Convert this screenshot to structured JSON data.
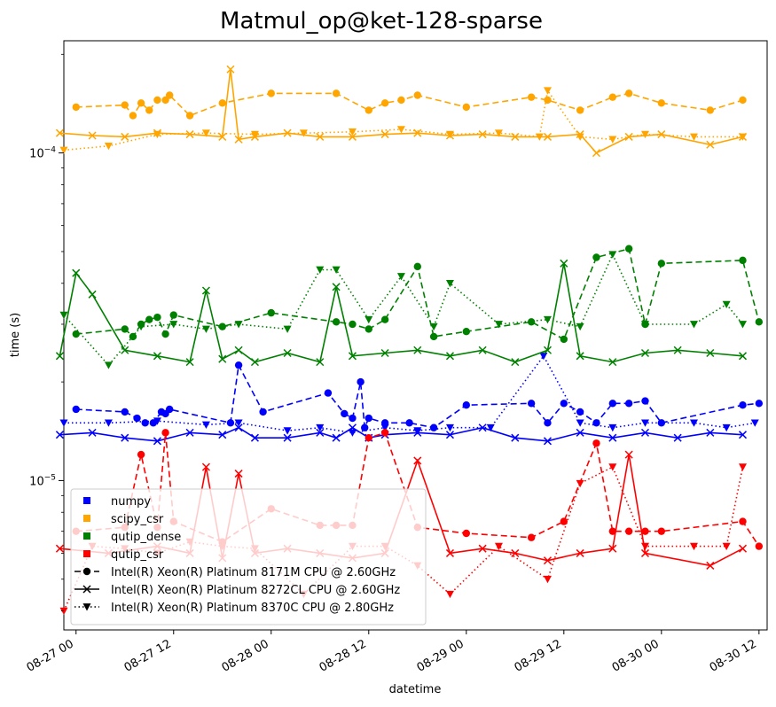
{
  "chart_data": {
    "type": "line",
    "title": "Matmul_op@ket-128-sparse",
    "xlabel": "datetime",
    "ylabel": "time (s)",
    "y_scale": "log",
    "ylim": [
      3.5e-06,
      0.00022
    ],
    "xlim": [
      "08-26 22:30",
      "08-30 13:00"
    ],
    "grid": false,
    "legend_placement": "lower-left",
    "x_ticks": [
      {
        "t": "08-27 00:00",
        "label": "08-27 00"
      },
      {
        "t": "08-27 12:00",
        "label": "08-27 12"
      },
      {
        "t": "08-28 00:00",
        "label": "08-28 00"
      },
      {
        "t": "08-28 12:00",
        "label": "08-28 12"
      },
      {
        "t": "08-29 00:00",
        "label": "08-29 00"
      },
      {
        "t": "08-29 12:00",
        "label": "08-29 12"
      },
      {
        "t": "08-30 00:00",
        "label": "08-30 00"
      },
      {
        "t": "08-30 12:00",
        "label": "08-30 12"
      }
    ],
    "y_ticks": [
      {
        "v": 0.0001,
        "label": "10^-4"
      },
      {
        "v": 1e-05,
        "label": "10^-5"
      }
    ],
    "legend": {
      "colors": [
        {
          "name": "numpy",
          "color": "#0000ff"
        },
        {
          "name": "scipy_csr",
          "color": "#ffa500"
        },
        {
          "name": "qutip_dense",
          "color": "#008000"
        },
        {
          "name": "qutip_csr",
          "color": "#ff0000"
        }
      ],
      "cpus": [
        {
          "name": "Intel(R) Xeon(R) Platinum 8171M CPU @ 2.60GHz",
          "marker": "circle",
          "dash": "dashed"
        },
        {
          "name": "Intel(R) Xeon(R) Platinum 8272CL CPU @ 2.60GHz",
          "marker": "x",
          "dash": "solid"
        },
        {
          "name": "Intel(R) Xeon(R) Platinum 8370C CPU @ 2.80GHz",
          "marker": "triangle",
          "dash": "dotted"
        }
      ]
    },
    "series": [
      {
        "lib": "numpy",
        "cpu": "8171M",
        "color": "#0000ff",
        "marker": "circle",
        "dash": "dashed",
        "x": [
          "08-27 00:00",
          "08-27 06:00",
          "08-27 07:30",
          "08-27 08:30",
          "08-27 09:30",
          "08-27 10:30",
          "08-27 11:00",
          "08-27 11:30",
          "08-27 19:00",
          "08-27 20:00",
          "08-27 23:00",
          "08-28 07:00",
          "08-28 09:00",
          "08-28 10:00",
          "08-28 11:00",
          "08-28 11:30",
          "08-28 12:00",
          "08-28 14:00",
          "08-28 17:00",
          "08-28 20:00",
          "08-29 00:00",
          "08-29 08:00",
          "08-29 10:00",
          "08-29 12:00",
          "08-29 14:00",
          "08-29 16:00",
          "08-29 18:00",
          "08-29 20:00",
          "08-29 22:00",
          "08-30 00:00",
          "08-30 10:00",
          "08-30 12:00"
        ],
        "y": [
          1.65e-05,
          1.62e-05,
          1.55e-05,
          1.5e-05,
          1.5e-05,
          1.62e-05,
          1.6e-05,
          1.65e-05,
          1.5e-05,
          2.25e-05,
          1.62e-05,
          1.85e-05,
          1.6e-05,
          1.55e-05,
          2e-05,
          1.45e-05,
          1.55e-05,
          1.5e-05,
          1.5e-05,
          1.45e-05,
          1.7e-05,
          1.72e-05,
          1.5e-05,
          1.72e-05,
          1.62e-05,
          1.5e-05,
          1.72e-05,
          1.72e-05,
          1.75e-05,
          1.5e-05,
          1.7e-05,
          1.72e-05
        ]
      },
      {
        "lib": "numpy",
        "cpu": "8272CL",
        "color": "#0000ff",
        "marker": "x",
        "dash": "solid",
        "x": [
          "08-26 22:00",
          "08-27 02:00",
          "08-27 06:00",
          "08-27 10:00",
          "08-27 14:00",
          "08-27 18:00",
          "08-27 20:00",
          "08-27 22:00",
          "08-28 02:00",
          "08-28 06:00",
          "08-28 08:00",
          "08-28 10:00",
          "08-28 12:00",
          "08-28 14:00",
          "08-28 18:00",
          "08-28 22:00",
          "08-29 02:00",
          "08-29 06:00",
          "08-29 10:00",
          "08-29 14:00",
          "08-29 18:00",
          "08-29 22:00",
          "08-30 02:00",
          "08-30 06:00",
          "08-30 10:00"
        ],
        "y": [
          1.38e-05,
          1.4e-05,
          1.35e-05,
          1.32e-05,
          1.4e-05,
          1.38e-05,
          1.45e-05,
          1.35e-05,
          1.35e-05,
          1.4e-05,
          1.35e-05,
          1.45e-05,
          1.35e-05,
          1.38e-05,
          1.4e-05,
          1.38e-05,
          1.45e-05,
          1.35e-05,
          1.32e-05,
          1.4e-05,
          1.35e-05,
          1.4e-05,
          1.35e-05,
          1.4e-05,
          1.38e-05
        ]
      },
      {
        "lib": "numpy",
        "cpu": "8370C",
        "color": "#0000ff",
        "marker": "triangle",
        "dash": "dotted",
        "x": [
          "08-26 22:30",
          "08-27 04:00",
          "08-27 10:00",
          "08-27 16:00",
          "08-27 20:00",
          "08-28 02:00",
          "08-28 06:00",
          "08-28 10:00",
          "08-28 14:00",
          "08-28 18:00",
          "08-28 22:00",
          "08-29 03:00",
          "08-29 09:30",
          "08-29 14:00",
          "08-29 18:00",
          "08-29 22:00",
          "08-30 04:00",
          "08-30 08:00",
          "08-30 11:30"
        ],
        "y": [
          1.5e-05,
          1.5e-05,
          1.52e-05,
          1.48e-05,
          1.5e-05,
          1.42e-05,
          1.45e-05,
          1.4e-05,
          1.45e-05,
          1.42e-05,
          1.45e-05,
          1.45e-05,
          2.4e-05,
          1.5e-05,
          1.45e-05,
          1.5e-05,
          1.5e-05,
          1.45e-05,
          1.5e-05
        ]
      },
      {
        "lib": "scipy_csr",
        "cpu": "8171M",
        "color": "#ffa500",
        "marker": "circle",
        "dash": "dashed",
        "x": [
          "08-27 00:00",
          "08-27 06:00",
          "08-27 07:00",
          "08-27 08:00",
          "08-27 09:00",
          "08-27 10:00",
          "08-27 11:00",
          "08-27 11:30",
          "08-27 14:00",
          "08-27 18:00",
          "08-28 00:00",
          "08-28 08:00",
          "08-28 12:00",
          "08-28 14:00",
          "08-28 16:00",
          "08-28 18:00",
          "08-29 00:00",
          "08-29 08:00",
          "08-29 10:00",
          "08-29 14:00",
          "08-29 18:00",
          "08-29 20:00",
          "08-30 00:00",
          "08-30 06:00",
          "08-30 10:00"
        ],
        "y": [
          0.000138,
          0.00014,
          0.00013,
          0.000142,
          0.000135,
          0.000145,
          0.000145,
          0.00015,
          0.00013,
          0.000142,
          0.000152,
          0.000152,
          0.000135,
          0.000142,
          0.000145,
          0.00015,
          0.000138,
          0.000148,
          0.000145,
          0.000135,
          0.000148,
          0.000152,
          0.000142,
          0.000135,
          0.000145
        ]
      },
      {
        "lib": "scipy_csr",
        "cpu": "8272CL",
        "color": "#ffa500",
        "marker": "x",
        "dash": "solid",
        "x": [
          "08-26 22:00",
          "08-27 02:00",
          "08-27 06:00",
          "08-27 10:00",
          "08-27 14:00",
          "08-27 18:00",
          "08-27 19:00",
          "08-27 20:00",
          "08-27 22:00",
          "08-28 02:00",
          "08-28 06:00",
          "08-28 10:00",
          "08-28 14:00",
          "08-28 18:00",
          "08-28 22:00",
          "08-29 02:00",
          "08-29 06:00",
          "08-29 10:00",
          "08-29 14:00",
          "08-29 16:00",
          "08-29 20:00",
          "08-30 00:00",
          "08-30 06:00",
          "08-30 10:00"
        ],
        "y": [
          0.000115,
          0.000113,
          0.000112,
          0.000115,
          0.000114,
          0.000112,
          0.00018,
          0.00011,
          0.000112,
          0.000115,
          0.000112,
          0.000112,
          0.000114,
          0.000115,
          0.000113,
          0.000114,
          0.000112,
          0.000112,
          0.000114,
          0.0001,
          0.000112,
          0.000114,
          0.000106,
          0.000112
        ]
      },
      {
        "lib": "scipy_csr",
        "cpu": "8370C",
        "color": "#ffa500",
        "marker": "triangle",
        "dash": "dotted",
        "x": [
          "08-26 22:30",
          "08-27 04:00",
          "08-27 10:00",
          "08-27 16:00",
          "08-27 22:00",
          "08-28 04:00",
          "08-28 10:00",
          "08-28 16:00",
          "08-28 22:00",
          "08-29 04:00",
          "08-29 09:00",
          "08-29 10:00",
          "08-29 14:00",
          "08-29 18:00",
          "08-29 22:00",
          "08-30 04:00",
          "08-30 10:00"
        ],
        "y": [
          0.000102,
          0.000105,
          0.000114,
          0.000115,
          0.000114,
          0.000115,
          0.000116,
          0.000118,
          0.000114,
          0.000115,
          0.000112,
          0.000155,
          0.000112,
          0.00011,
          0.000114,
          0.000112,
          0.000112
        ]
      },
      {
        "lib": "qutip_dense",
        "cpu": "8171M",
        "color": "#008000",
        "marker": "circle",
        "dash": "dashed",
        "x": [
          "08-27 00:00",
          "08-27 06:00",
          "08-27 07:00",
          "08-27 08:00",
          "08-27 09:00",
          "08-27 10:00",
          "08-27 11:00",
          "08-27 12:00",
          "08-27 18:00",
          "08-28 00:00",
          "08-28 08:00",
          "08-28 10:00",
          "08-28 12:00",
          "08-28 14:00",
          "08-28 18:00",
          "08-28 20:00",
          "08-29 00:00",
          "08-29 08:00",
          "08-29 12:00",
          "08-29 16:00",
          "08-29 20:00",
          "08-29 22:00",
          "08-30 00:00",
          "08-30 10:00",
          "08-30 12:00"
        ],
        "y": [
          2.8e-05,
          2.9e-05,
          2.75e-05,
          3e-05,
          3.1e-05,
          3.15e-05,
          2.8e-05,
          3.2e-05,
          2.95e-05,
          3.25e-05,
          3.05e-05,
          3e-05,
          2.9e-05,
          3.1e-05,
          4.5e-05,
          2.75e-05,
          2.85e-05,
          3.05e-05,
          2.7e-05,
          4.8e-05,
          5.1e-05,
          3e-05,
          4.6e-05,
          4.7e-05,
          3.05e-05
        ]
      },
      {
        "lib": "qutip_dense",
        "cpu": "8272CL",
        "color": "#008000",
        "marker": "x",
        "dash": "solid",
        "x": [
          "08-26 22:00",
          "08-27 00:00",
          "08-27 02:00",
          "08-27 06:00",
          "08-27 10:00",
          "08-27 14:00",
          "08-27 16:00",
          "08-27 18:00",
          "08-27 20:00",
          "08-27 22:00",
          "08-28 02:00",
          "08-28 06:00",
          "08-28 08:00",
          "08-28 10:00",
          "08-28 14:00",
          "08-28 18:00",
          "08-28 22:00",
          "08-29 02:00",
          "08-29 06:00",
          "08-29 10:00",
          "08-29 12:00",
          "08-29 14:00",
          "08-29 18:00",
          "08-29 22:00",
          "08-30 02:00",
          "08-30 06:00",
          "08-30 10:00"
        ],
        "y": [
          2.4e-05,
          4.3e-05,
          3.7e-05,
          2.5e-05,
          2.4e-05,
          2.3e-05,
          3.8e-05,
          2.35e-05,
          2.5e-05,
          2.3e-05,
          2.45e-05,
          2.3e-05,
          3.9e-05,
          2.4e-05,
          2.45e-05,
          2.5e-05,
          2.4e-05,
          2.5e-05,
          2.3e-05,
          2.5e-05,
          4.6e-05,
          2.4e-05,
          2.3e-05,
          2.45e-05,
          2.5e-05,
          2.45e-05,
          2.4e-05
        ]
      },
      {
        "lib": "qutip_dense",
        "cpu": "8370C",
        "color": "#008000",
        "marker": "triangle",
        "dash": "dotted",
        "x": [
          "08-26 22:30",
          "08-27 04:00",
          "08-27 08:00",
          "08-27 12:00",
          "08-27 16:00",
          "08-27 20:00",
          "08-28 02:00",
          "08-28 06:00",
          "08-28 08:00",
          "08-28 12:00",
          "08-28 16:00",
          "08-28 20:00",
          "08-28 22:00",
          "08-29 04:00",
          "08-29 10:00",
          "08-29 14:00",
          "08-29 18:00",
          "08-29 22:00",
          "08-30 04:00",
          "08-30 08:00",
          "08-30 10:00"
        ],
        "y": [
          3.2e-05,
          2.25e-05,
          2.95e-05,
          3e-05,
          2.9e-05,
          3e-05,
          2.9e-05,
          4.4e-05,
          4.4e-05,
          3.1e-05,
          4.2e-05,
          2.95e-05,
          4e-05,
          3e-05,
          3.1e-05,
          2.95e-05,
          4.9e-05,
          3e-05,
          3e-05,
          3.45e-05,
          3e-05
        ]
      },
      {
        "lib": "qutip_csr",
        "cpu": "8171M",
        "color": "#ff0000",
        "marker": "circle",
        "dash": "dashed",
        "x": [
          "08-27 00:00",
          "08-27 06:00",
          "08-27 08:00",
          "08-27 10:00",
          "08-27 11:00",
          "08-27 12:00",
          "08-27 18:00",
          "08-28 00:00",
          "08-28 06:00",
          "08-28 08:00",
          "08-28 10:00",
          "08-28 12:00",
          "08-28 14:00",
          "08-28 18:00",
          "08-29 00:00",
          "08-29 08:00",
          "08-29 12:00",
          "08-29 16:00",
          "08-29 18:00",
          "08-29 20:00",
          "08-29 22:00",
          "08-30 00:00",
          "08-30 10:00",
          "08-30 12:00"
        ],
        "y": [
          7e-06,
          7.2e-06,
          1.2e-05,
          7.2e-06,
          1.4e-05,
          7.5e-06,
          6.5e-06,
          8.2e-06,
          7.3e-06,
          7.3e-06,
          7.3e-06,
          1.35e-05,
          1.4e-05,
          7.2e-06,
          6.9e-06,
          6.7e-06,
          7.5e-06,
          1.3e-05,
          7e-06,
          7e-06,
          7e-06,
          7e-06,
          7.5e-06,
          6.3e-06
        ]
      },
      {
        "lib": "qutip_csr",
        "cpu": "8272CL",
        "color": "#ff0000",
        "marker": "x",
        "dash": "solid",
        "x": [
          "08-26 22:00",
          "08-27 04:00",
          "08-27 10:00",
          "08-27 14:00",
          "08-27 16:00",
          "08-27 18:00",
          "08-27 20:00",
          "08-27 22:00",
          "08-28 02:00",
          "08-28 06:00",
          "08-28 10:00",
          "08-28 14:00",
          "08-28 18:00",
          "08-28 22:00",
          "08-29 02:00",
          "08-29 06:00",
          "08-29 10:00",
          "08-29 14:00",
          "08-29 18:00",
          "08-29 20:00",
          "08-29 22:00",
          "08-30 06:00",
          "08-30 10:00"
        ],
        "y": [
          6.2e-06,
          6e-06,
          6.3e-06,
          6e-06,
          1.1e-05,
          5.8e-06,
          1.05e-05,
          6e-06,
          6.2e-06,
          6e-06,
          5.8e-06,
          6e-06,
          1.15e-05,
          6e-06,
          6.2e-06,
          6e-06,
          5.7e-06,
          6e-06,
          6.2e-06,
          1.2e-05,
          6e-06,
          5.5e-06,
          6.2e-06
        ]
      },
      {
        "lib": "qutip_csr",
        "cpu": "8370C",
        "color": "#ff0000",
        "marker": "triangle",
        "dash": "dotted",
        "x": [
          "08-26 22:30",
          "08-27 02:00",
          "08-27 06:00",
          "08-27 10:00",
          "08-27 14:00",
          "08-27 18:00",
          "08-27 22:00",
          "08-28 04:00",
          "08-28 10:00",
          "08-28 14:00",
          "08-28 18:00",
          "08-28 22:00",
          "08-29 04:00",
          "08-29 10:00",
          "08-29 14:00",
          "08-29 18:00",
          "08-29 22:00",
          "08-30 04:00",
          "08-30 08:00",
          "08-30 10:00"
        ],
        "y": [
          4e-06,
          6.3e-06,
          6.2e-06,
          6e-06,
          6.5e-06,
          6.3e-06,
          6.2e-06,
          4.5e-06,
          6.3e-06,
          6.3e-06,
          5.5e-06,
          4.5e-06,
          6.3e-06,
          5e-06,
          9.8e-06,
          1.1e-05,
          6.3e-06,
          6.3e-06,
          6.3e-06,
          1.1e-05
        ]
      }
    ]
  }
}
